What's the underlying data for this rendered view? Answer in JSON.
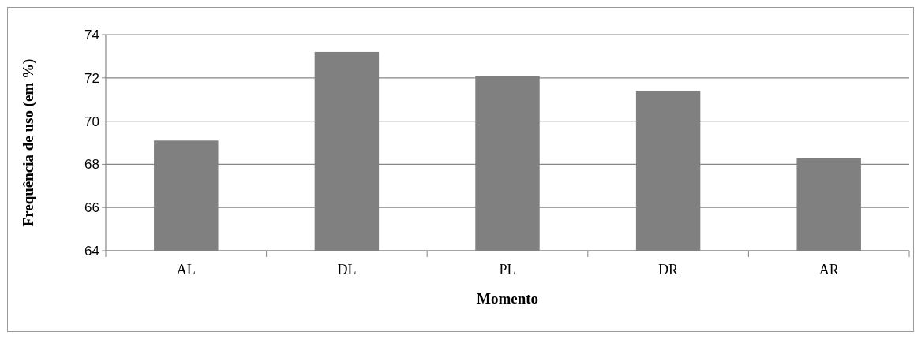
{
  "chart_data": {
    "type": "bar",
    "xlabel": "Momento",
    "ylabel": "Frequência de uso (em %)",
    "categories": [
      "AL",
      "DL",
      "PL",
      "DR",
      "AR"
    ],
    "values": [
      69.1,
      73.2,
      72.1,
      71.4,
      68.3
    ],
    "color": "#808080",
    "ylim": [
      64,
      74
    ],
    "yticks": [
      64,
      66,
      68,
      70,
      72,
      74
    ],
    "grid": "y"
  }
}
